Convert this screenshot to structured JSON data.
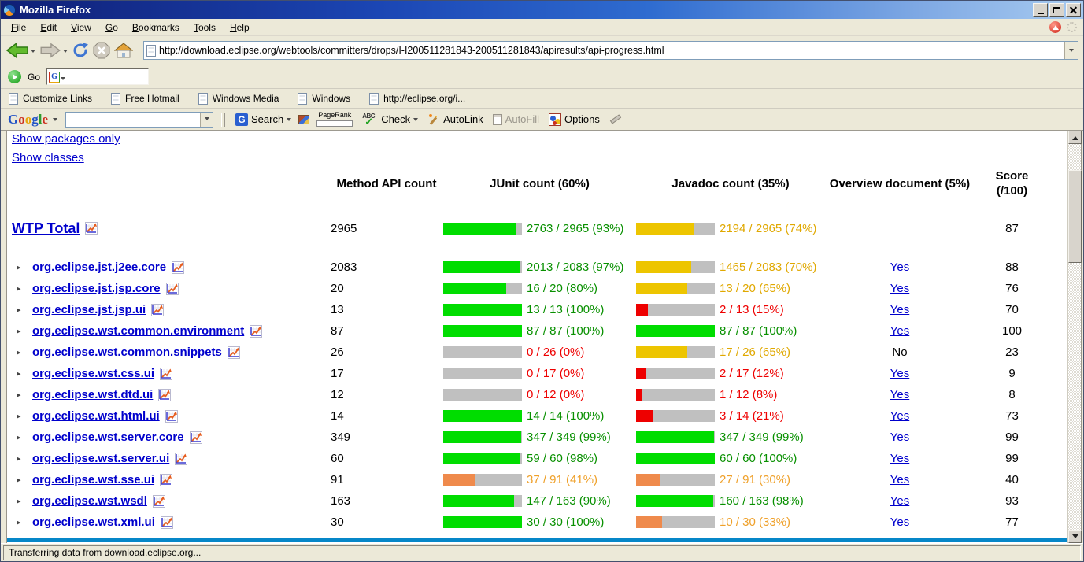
{
  "window": {
    "title": "Mozilla Firefox"
  },
  "menubar": {
    "items": [
      "File",
      "Edit",
      "View",
      "Go",
      "Bookmarks",
      "Tools",
      "Help"
    ]
  },
  "navbar": {
    "url": "http://download.eclipse.org/webtools/committers/drops/I-I200511281843-200511281843/apiresults/api-progress.html"
  },
  "gobar": {
    "go_label": "Go"
  },
  "bookmarks_bar": {
    "items": [
      "Customize Links",
      "Free Hotmail",
      "Windows Media",
      "Windows",
      "http://eclipse.org/i..."
    ]
  },
  "google_toolbar": {
    "logo": "Google",
    "g_icon": "G",
    "search_label": "Search",
    "pagerank_label": "PageRank",
    "abc_label": "ABC",
    "check_label": "Check",
    "autolink_label": "AutoLink",
    "autofill_label": "AutoFill",
    "options_label": "Options",
    "search_input_value": ""
  },
  "page": {
    "links": {
      "show_packages": "Show packages only",
      "show_classes": "Show classes"
    },
    "table": {
      "headers": [
        "Method API count",
        "JUnit count (60%)",
        "Javadoc count (35%)",
        "Overview document (5%)",
        "Score (/100)"
      ],
      "total_row": {
        "name": "WTP Total",
        "count": "2965",
        "junit": {
          "label": "2763 / 2965 (93%)",
          "pct": 93,
          "tone": "green"
        },
        "javadoc": {
          "label": "2194 / 2965 (74%)",
          "pct": 74,
          "tone": "gold"
        },
        "overview": {
          "label": "",
          "link": false
        },
        "score": "87"
      },
      "rows": [
        {
          "name": "org.eclipse.jst.j2ee.core",
          "count": "2083",
          "junit": {
            "label": "2013 / 2083 (97%)",
            "pct": 97,
            "tone": "green"
          },
          "javadoc": {
            "label": "1465 / 2083 (70%)",
            "pct": 70,
            "tone": "gold"
          },
          "overview": {
            "label": "Yes",
            "link": true
          },
          "score": "88"
        },
        {
          "name": "org.eclipse.jst.jsp.core",
          "count": "20",
          "junit": {
            "label": "16 / 20 (80%)",
            "pct": 80,
            "tone": "green"
          },
          "javadoc": {
            "label": "13 / 20 (65%)",
            "pct": 65,
            "tone": "gold"
          },
          "overview": {
            "label": "Yes",
            "link": true
          },
          "score": "76"
        },
        {
          "name": "org.eclipse.jst.jsp.ui",
          "count": "13",
          "junit": {
            "label": "13 / 13 (100%)",
            "pct": 100,
            "tone": "green"
          },
          "javadoc": {
            "label": "2 / 13 (15%)",
            "pct": 15,
            "tone": "red"
          },
          "overview": {
            "label": "Yes",
            "link": true
          },
          "score": "70"
        },
        {
          "name": "org.eclipse.wst.common.environment",
          "count": "87",
          "junit": {
            "label": "87 / 87 (100%)",
            "pct": 100,
            "tone": "green"
          },
          "javadoc": {
            "label": "87 / 87 (100%)",
            "pct": 100,
            "tone": "green"
          },
          "overview": {
            "label": "Yes",
            "link": true
          },
          "score": "100"
        },
        {
          "name": "org.eclipse.wst.common.snippets",
          "count": "26",
          "junit": {
            "label": "0 / 26 (0%)",
            "pct": 0,
            "tone": "red"
          },
          "javadoc": {
            "label": "17 / 26 (65%)",
            "pct": 65,
            "tone": "gold"
          },
          "overview": {
            "label": "No",
            "link": false
          },
          "score": "23"
        },
        {
          "name": "org.eclipse.wst.css.ui",
          "count": "17",
          "junit": {
            "label": "0 / 17 (0%)",
            "pct": 0,
            "tone": "red"
          },
          "javadoc": {
            "label": "2 / 17 (12%)",
            "pct": 12,
            "tone": "red"
          },
          "overview": {
            "label": "Yes",
            "link": true
          },
          "score": "9"
        },
        {
          "name": "org.eclipse.wst.dtd.ui",
          "count": "12",
          "junit": {
            "label": "0 / 12 (0%)",
            "pct": 0,
            "tone": "red"
          },
          "javadoc": {
            "label": "1 / 12 (8%)",
            "pct": 8,
            "tone": "red"
          },
          "overview": {
            "label": "Yes",
            "link": true
          },
          "score": "8"
        },
        {
          "name": "org.eclipse.wst.html.ui",
          "count": "14",
          "junit": {
            "label": "14 / 14 (100%)",
            "pct": 100,
            "tone": "green"
          },
          "javadoc": {
            "label": "3 / 14 (21%)",
            "pct": 21,
            "tone": "red"
          },
          "overview": {
            "label": "Yes",
            "link": true
          },
          "score": "73"
        },
        {
          "name": "org.eclipse.wst.server.core",
          "count": "349",
          "junit": {
            "label": "347 / 349 (99%)",
            "pct": 99,
            "tone": "green"
          },
          "javadoc": {
            "label": "347 / 349 (99%)",
            "pct": 99,
            "tone": "green"
          },
          "overview": {
            "label": "Yes",
            "link": true
          },
          "score": "99"
        },
        {
          "name": "org.eclipse.wst.server.ui",
          "count": "60",
          "junit": {
            "label": "59 / 60 (98%)",
            "pct": 98,
            "tone": "green"
          },
          "javadoc": {
            "label": "60 / 60 (100%)",
            "pct": 100,
            "tone": "green"
          },
          "overview": {
            "label": "Yes",
            "link": true
          },
          "score": "99"
        },
        {
          "name": "org.eclipse.wst.sse.ui",
          "count": "91",
          "junit": {
            "label": "37 / 91 (41%)",
            "pct": 41,
            "tone": "orange"
          },
          "javadoc": {
            "label": "27 / 91 (30%)",
            "pct": 30,
            "tone": "orange"
          },
          "overview": {
            "label": "Yes",
            "link": true
          },
          "score": "40"
        },
        {
          "name": "org.eclipse.wst.wsdl",
          "count": "163",
          "junit": {
            "label": "147 / 163 (90%)",
            "pct": 90,
            "tone": "green"
          },
          "javadoc": {
            "label": "160 / 163 (98%)",
            "pct": 98,
            "tone": "green"
          },
          "overview": {
            "label": "Yes",
            "link": true
          },
          "score": "93"
        },
        {
          "name": "org.eclipse.wst.xml.ui",
          "count": "30",
          "junit": {
            "label": "30 / 30 (100%)",
            "pct": 100,
            "tone": "green"
          },
          "javadoc": {
            "label": "10 / 30 (33%)",
            "pct": 33,
            "tone": "orange"
          },
          "overview": {
            "label": "Yes",
            "link": true
          },
          "score": "77"
        }
      ]
    }
  },
  "statusbar": {
    "text": "Transferring data from download.eclipse.org..."
  },
  "colors": {
    "bar_green": "#00dd00",
    "bar_gold": "#edc500",
    "bar_red": "#ee0000",
    "bar_orange": "#ef8a4c",
    "bar_track": "#c0c0c0",
    "text_green": "#089000",
    "text_gold": "#e0a800",
    "text_red": "#ee0000",
    "text_orange": "#efa029",
    "link_blue": "#0000cc",
    "page_rule_blue": "#0787c8",
    "titlebar_blue": "#1b46b4"
  }
}
